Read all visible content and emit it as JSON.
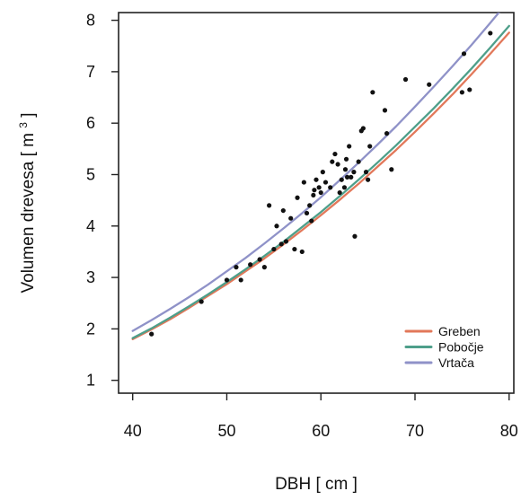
{
  "chart_data": {
    "type": "scatter",
    "title": "",
    "xlabel": "DBH [ cm ]",
    "ylabel_main": "Volumen drevesa [ m",
    "ylabel_sup": "3",
    "ylabel_end": " ]",
    "xlim": [
      38.5,
      80.5
    ],
    "ylim": [
      0.75,
      8.15
    ],
    "x_ticks": [
      40,
      50,
      60,
      70,
      80
    ],
    "y_ticks": [
      1,
      2,
      3,
      4,
      5,
      6,
      7,
      8
    ],
    "grid": false,
    "legend_position": "bottom-right",
    "points": [
      [
        42.0,
        1.9
      ],
      [
        47.3,
        2.53
      ],
      [
        50.0,
        2.95
      ],
      [
        51.0,
        3.2
      ],
      [
        51.5,
        2.95
      ],
      [
        52.5,
        3.25
      ],
      [
        53.5,
        3.35
      ],
      [
        54.0,
        3.2
      ],
      [
        54.5,
        4.4
      ],
      [
        55.0,
        3.55
      ],
      [
        55.3,
        4.0
      ],
      [
        55.8,
        3.65
      ],
      [
        56.0,
        4.3
      ],
      [
        56.3,
        3.7
      ],
      [
        56.8,
        4.15
      ],
      [
        57.2,
        3.55
      ],
      [
        57.5,
        4.55
      ],
      [
        58.0,
        3.5
      ],
      [
        58.2,
        4.85
      ],
      [
        58.5,
        4.25
      ],
      [
        58.8,
        4.4
      ],
      [
        59.0,
        4.1
      ],
      [
        59.2,
        4.6
      ],
      [
        59.3,
        4.7
      ],
      [
        59.5,
        4.9
      ],
      [
        59.8,
        4.75
      ],
      [
        60.0,
        4.65
      ],
      [
        60.2,
        5.05
      ],
      [
        60.5,
        4.85
      ],
      [
        61.0,
        4.75
      ],
      [
        61.2,
        5.25
      ],
      [
        61.5,
        5.4
      ],
      [
        61.8,
        5.2
      ],
      [
        62.0,
        4.65
      ],
      [
        62.2,
        4.9
      ],
      [
        62.5,
        4.75
      ],
      [
        62.6,
        5.1
      ],
      [
        62.7,
        5.3
      ],
      [
        62.8,
        4.95
      ],
      [
        63.0,
        5.55
      ],
      [
        63.2,
        4.95
      ],
      [
        63.5,
        5.05
      ],
      [
        63.6,
        3.8
      ],
      [
        64.0,
        5.25
      ],
      [
        64.3,
        5.85
      ],
      [
        64.5,
        5.9
      ],
      [
        64.8,
        5.05
      ],
      [
        65.0,
        4.9
      ],
      [
        65.2,
        5.55
      ],
      [
        65.5,
        6.6
      ],
      [
        66.8,
        6.25
      ],
      [
        67.0,
        5.8
      ],
      [
        67.5,
        5.1
      ],
      [
        69.0,
        6.85
      ],
      [
        71.5,
        6.75
      ],
      [
        75.0,
        6.6
      ],
      [
        75.2,
        7.35
      ],
      [
        75.8,
        6.65
      ],
      [
        78.0,
        7.75
      ]
    ],
    "series": [
      {
        "name": "Greben",
        "color": "#e2785a",
        "x": [
          40,
          42,
          44,
          46,
          48,
          50,
          52,
          54,
          56,
          58,
          60,
          62,
          64,
          66,
          68,
          70,
          72,
          74,
          76,
          78,
          80
        ],
        "y": [
          1.8,
          1.99,
          2.19,
          2.41,
          2.64,
          2.87,
          3.12,
          3.37,
          3.64,
          3.92,
          4.21,
          4.51,
          4.82,
          5.15,
          5.48,
          5.83,
          6.19,
          6.56,
          6.95,
          7.35,
          7.76
        ]
      },
      {
        "name": "Pobočje",
        "color": "#4e9f8a",
        "x": [
          40,
          42,
          44,
          46,
          48,
          50,
          52,
          54,
          56,
          58,
          60,
          62,
          64,
          66,
          68,
          70,
          72,
          74,
          76,
          78,
          80
        ],
        "y": [
          1.82,
          2.01,
          2.22,
          2.44,
          2.67,
          2.91,
          3.16,
          3.42,
          3.69,
          3.98,
          4.27,
          4.58,
          4.9,
          5.23,
          5.57,
          5.93,
          6.29,
          6.67,
          7.06,
          7.47,
          7.89
        ]
      },
      {
        "name": "Vrtača",
        "color": "#8f92c8",
        "x": [
          40,
          42,
          44,
          46,
          48,
          50,
          52,
          54,
          56,
          58,
          60,
          62,
          64,
          66,
          68,
          70,
          72,
          74,
          76,
          78,
          80
        ],
        "y": [
          1.96,
          2.17,
          2.39,
          2.62,
          2.86,
          3.12,
          3.38,
          3.66,
          3.95,
          4.25,
          4.56,
          4.89,
          5.23,
          5.58,
          5.94,
          6.32,
          6.71,
          7.11,
          7.52,
          7.95,
          8.39
        ]
      }
    ]
  }
}
